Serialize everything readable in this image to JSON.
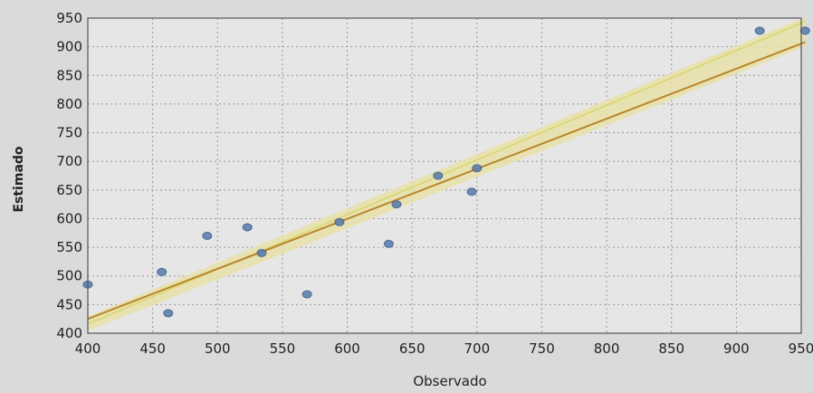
{
  "chart_data": {
    "type": "scatter",
    "title": "",
    "xlabel": "Observado",
    "ylabel": "Estimado",
    "xlim": [
      400,
      950
    ],
    "ylim": [
      400,
      950
    ],
    "xticks": [
      400,
      450,
      500,
      550,
      600,
      650,
      700,
      750,
      800,
      850,
      900,
      950
    ],
    "yticks": [
      400,
      450,
      500,
      550,
      600,
      650,
      700,
      750,
      800,
      850,
      900,
      950
    ],
    "grid": true,
    "points": [
      {
        "x": 400,
        "y": 485
      },
      {
        "x": 457,
        "y": 507
      },
      {
        "x": 462,
        "y": 435
      },
      {
        "x": 492,
        "y": 570
      },
      {
        "x": 523,
        "y": 585
      },
      {
        "x": 534,
        "y": 540
      },
      {
        "x": 569,
        "y": 468
      },
      {
        "x": 594,
        "y": 594
      },
      {
        "x": 632,
        "y": 556
      },
      {
        "x": 638,
        "y": 625
      },
      {
        "x": 670,
        "y": 675
      },
      {
        "x": 696,
        "y": 647
      },
      {
        "x": 700,
        "y": 688
      },
      {
        "x": 918,
        "y": 928
      },
      {
        "x": 953,
        "y": 928
      }
    ],
    "fit_line": {
      "x": [
        400,
        953
      ],
      "y": [
        425,
        908
      ]
    },
    "identity_line": {
      "x": [
        400,
        953
      ],
      "y": [
        416,
        944
      ]
    },
    "colors": {
      "points": "#5d7fae",
      "fit_line": "#b8862a",
      "identity_line": "#d9d66a",
      "band": "#e8e1a8",
      "plot_background": "#e6e6e6",
      "grid": "#9a9a9a"
    }
  }
}
